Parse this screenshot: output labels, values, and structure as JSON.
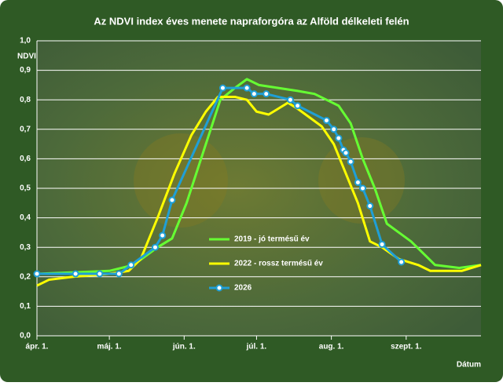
{
  "chart_data": {
    "type": "line",
    "title": "Az NDVI index éves menete napraforgóra az Alföld délkeleti felén",
    "y_label": "NDVI",
    "x_label": "Dátum",
    "xlim": [
      0,
      184
    ],
    "xticks": [
      {
        "value": 0,
        "label": "ápr. 1."
      },
      {
        "value": 30,
        "label": "máj. 1."
      },
      {
        "value": 61,
        "label": "jún. 1."
      },
      {
        "value": 91,
        "label": "júl. 1."
      },
      {
        "value": 122,
        "label": "aug. 1."
      },
      {
        "value": 153,
        "label": "szept. 1."
      }
    ],
    "ylim": [
      0,
      1
    ],
    "yticks": [
      {
        "value": 0,
        "label": "0,0"
      },
      {
        "value": 0.1,
        "label": "0,1"
      },
      {
        "value": 0.2,
        "label": "0,2"
      },
      {
        "value": 0.3,
        "label": "0,3"
      },
      {
        "value": 0.4,
        "label": "0,4"
      },
      {
        "value": 0.5,
        "label": "0,5"
      },
      {
        "value": 0.6,
        "label": "0,6"
      },
      {
        "value": 0.7,
        "label": "0,7"
      },
      {
        "value": 0.8,
        "label": "0,8"
      },
      {
        "value": 0.9,
        "label": "0,9"
      },
      {
        "value": 1,
        "label": "1,0"
      }
    ],
    "grid": true,
    "series": [
      {
        "name": "2019 - jó termésű év",
        "color": "#66ff33",
        "markers": false,
        "x": [
          0,
          30,
          40,
          50,
          56,
          62,
          70,
          76,
          82,
          87,
          92,
          100,
          108,
          115,
          120,
          125,
          130,
          135,
          140,
          145,
          150,
          155,
          160,
          165,
          175,
          184
        ],
        "values": [
          0.21,
          0.22,
          0.24,
          0.3,
          0.33,
          0.45,
          0.65,
          0.8,
          0.84,
          0.87,
          0.85,
          0.84,
          0.83,
          0.82,
          0.8,
          0.78,
          0.72,
          0.6,
          0.5,
          0.38,
          0.35,
          0.32,
          0.28,
          0.24,
          0.23,
          0.24
        ]
      },
      {
        "name": "2022 - rossz termésű év",
        "color": "#ffff00",
        "markers": false,
        "x": [
          0,
          5,
          15,
          30,
          38,
          43,
          50,
          57,
          64,
          70,
          75,
          82,
          87,
          91,
          96,
          100,
          104,
          108,
          113,
          118,
          123,
          128,
          133,
          138,
          143,
          150,
          158,
          163,
          170,
          176,
          184
        ],
        "values": [
          0.17,
          0.19,
          0.2,
          0.21,
          0.22,
          0.26,
          0.4,
          0.55,
          0.68,
          0.76,
          0.81,
          0.81,
          0.8,
          0.76,
          0.75,
          0.77,
          0.79,
          0.77,
          0.74,
          0.71,
          0.65,
          0.55,
          0.45,
          0.32,
          0.3,
          0.26,
          0.24,
          0.22,
          0.22,
          0.22,
          0.24
        ]
      },
      {
        "name": "2026",
        "color": "#1f9fd6",
        "markers": true,
        "x": [
          0,
          16,
          26,
          34,
          39,
          49,
          52,
          56,
          77,
          87,
          90,
          95,
          105,
          108,
          120,
          123,
          125,
          127,
          128,
          130,
          133,
          135,
          138,
          143,
          151
        ],
        "values": [
          0.21,
          0.21,
          0.21,
          0.21,
          0.24,
          0.3,
          0.34,
          0.46,
          0.84,
          0.84,
          0.82,
          0.82,
          0.8,
          0.78,
          0.73,
          0.7,
          0.67,
          0.63,
          0.62,
          0.59,
          0.52,
          0.5,
          0.44,
          0.31,
          0.25
        ]
      }
    ]
  }
}
